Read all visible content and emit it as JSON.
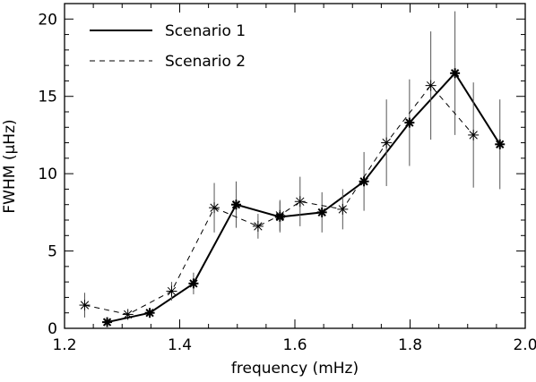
{
  "chart_data": {
    "type": "line",
    "title": "",
    "xlabel": "frequency (mHz)",
    "ylabel": "FWHM (μHz)",
    "xlim": [
      1.2,
      2.0
    ],
    "ylim": [
      0,
      21
    ],
    "xticks": [
      "1.2",
      "1.4",
      "1.6",
      "1.8",
      "2.0"
    ],
    "yticks": [
      "0",
      "5",
      "10",
      "15",
      "20"
    ],
    "xtick_values": [
      1.2,
      1.4,
      1.6,
      1.8,
      2.0
    ],
    "ytick_values": [
      0,
      5,
      10,
      15,
      20
    ],
    "xminor_step": 0.05,
    "yminor_step": 1,
    "grid": false,
    "legend_position": "top-left",
    "series": [
      {
        "name": "Scenario 1",
        "style": "solid",
        "color": "#000000",
        "marker": "asterisk",
        "points": [
          {
            "x": 1.274,
            "y": 0.4,
            "err": 0
          },
          {
            "x": 1.348,
            "y": 1.0,
            "err": 0
          },
          {
            "x": 1.424,
            "y": 2.9,
            "err": 0.7
          },
          {
            "x": 1.498,
            "y": 8.0,
            "err": 1.5
          },
          {
            "x": 1.574,
            "y": 7.2,
            "err": 1.0
          },
          {
            "x": 1.647,
            "y": 7.5,
            "err": 1.3
          },
          {
            "x": 1.72,
            "y": 9.5,
            "err": 1.9
          },
          {
            "x": 1.799,
            "y": 13.3,
            "err": 2.8
          },
          {
            "x": 1.878,
            "y": 16.5,
            "err": 4.0
          },
          {
            "x": 1.956,
            "y": 11.9,
            "err": 2.9
          }
        ]
      },
      {
        "name": "Scenario 2",
        "style": "dashed",
        "color": "#000000",
        "marker": "asterisk",
        "points": [
          {
            "x": 1.235,
            "y": 1.5,
            "err": 0.8
          },
          {
            "x": 1.31,
            "y": 0.9,
            "err": 0
          },
          {
            "x": 1.386,
            "y": 2.4,
            "err": 0.6
          },
          {
            "x": 1.46,
            "y": 7.8,
            "err": 1.6
          },
          {
            "x": 1.536,
            "y": 6.6,
            "err": 0.8
          },
          {
            "x": 1.574,
            "y": 7.3,
            "err": 1.0
          },
          {
            "x": 1.609,
            "y": 8.2,
            "err": 1.6
          },
          {
            "x": 1.683,
            "y": 7.7,
            "err": 1.3
          },
          {
            "x": 1.759,
            "y": 12.0,
            "err": 2.8
          },
          {
            "x": 1.836,
            "y": 15.7,
            "err": 3.5
          },
          {
            "x": 1.91,
            "y": 12.5,
            "err": 3.4
          }
        ]
      }
    ]
  }
}
